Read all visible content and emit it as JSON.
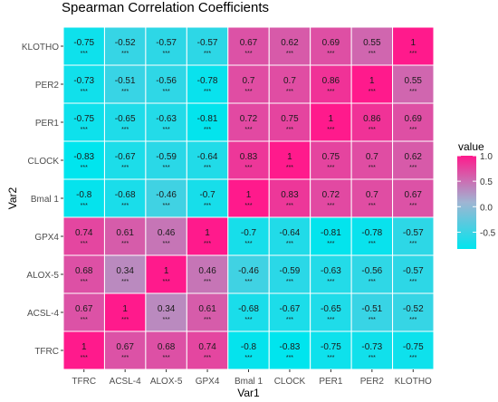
{
  "chart_data": {
    "type": "heatmap",
    "title": "Spearman Correlation Coefficients",
    "xlabel": "Var1",
    "ylabel": "Var2",
    "x_categories": [
      "TFRC",
      "ACSL-4",
      "ALOX-5",
      "GPX4",
      "Bmal 1",
      "CLOCK",
      "PER1",
      "PER2",
      "KLOTHO"
    ],
    "y_categories": [
      "KLOTHO",
      "PER2",
      "PER1",
      "CLOCK",
      "Bmal 1",
      "GPX4",
      "ALOX-5",
      "ACSL-4",
      "TFRC"
    ],
    "values": [
      [
        "-0.75",
        "-0.52",
        "-0.57",
        "-0.57",
        "0.67",
        "0.62",
        "0.69",
        "0.55",
        "1"
      ],
      [
        "-0.73",
        "-0.51",
        "-0.56",
        "-0.78",
        "0.7",
        "0.7",
        "0.86",
        "1",
        "0.55"
      ],
      [
        "-0.75",
        "-0.65",
        "-0.63",
        "-0.81",
        "0.72",
        "0.75",
        "1",
        "0.86",
        "0.69"
      ],
      [
        "-0.83",
        "-0.67",
        "-0.59",
        "-0.64",
        "0.83",
        "1",
        "0.75",
        "0.7",
        "0.62"
      ],
      [
        "-0.8",
        "-0.68",
        "-0.46",
        "-0.7",
        "1",
        "0.83",
        "0.72",
        "0.7",
        "0.67"
      ],
      [
        "0.74",
        "0.61",
        "0.46",
        "1",
        "-0.7",
        "-0.64",
        "-0.81",
        "-0.78",
        "-0.57"
      ],
      [
        "0.68",
        "0.34",
        "1",
        "0.46",
        "-0.46",
        "-0.59",
        "-0.63",
        "-0.56",
        "-0.57"
      ],
      [
        "0.67",
        "1",
        "0.34",
        "0.61",
        "-0.68",
        "-0.67",
        "-0.65",
        "-0.51",
        "-0.52"
      ],
      [
        "1",
        "0.67",
        "0.68",
        "0.74",
        "-0.8",
        "-0.83",
        "-0.75",
        "-0.73",
        "-0.75"
      ]
    ],
    "significance": "***",
    "legend": {
      "title": "value",
      "ticks": [
        "1.0",
        "0.5",
        "0.0",
        "-0.5"
      ],
      "range": [
        -0.83,
        1.0
      ],
      "placement": "right"
    },
    "colors": {
      "low": "#00e5ee",
      "mid": "#9fb5d3",
      "high": "#ff1a8c",
      "grid": "#ffffff"
    }
  }
}
